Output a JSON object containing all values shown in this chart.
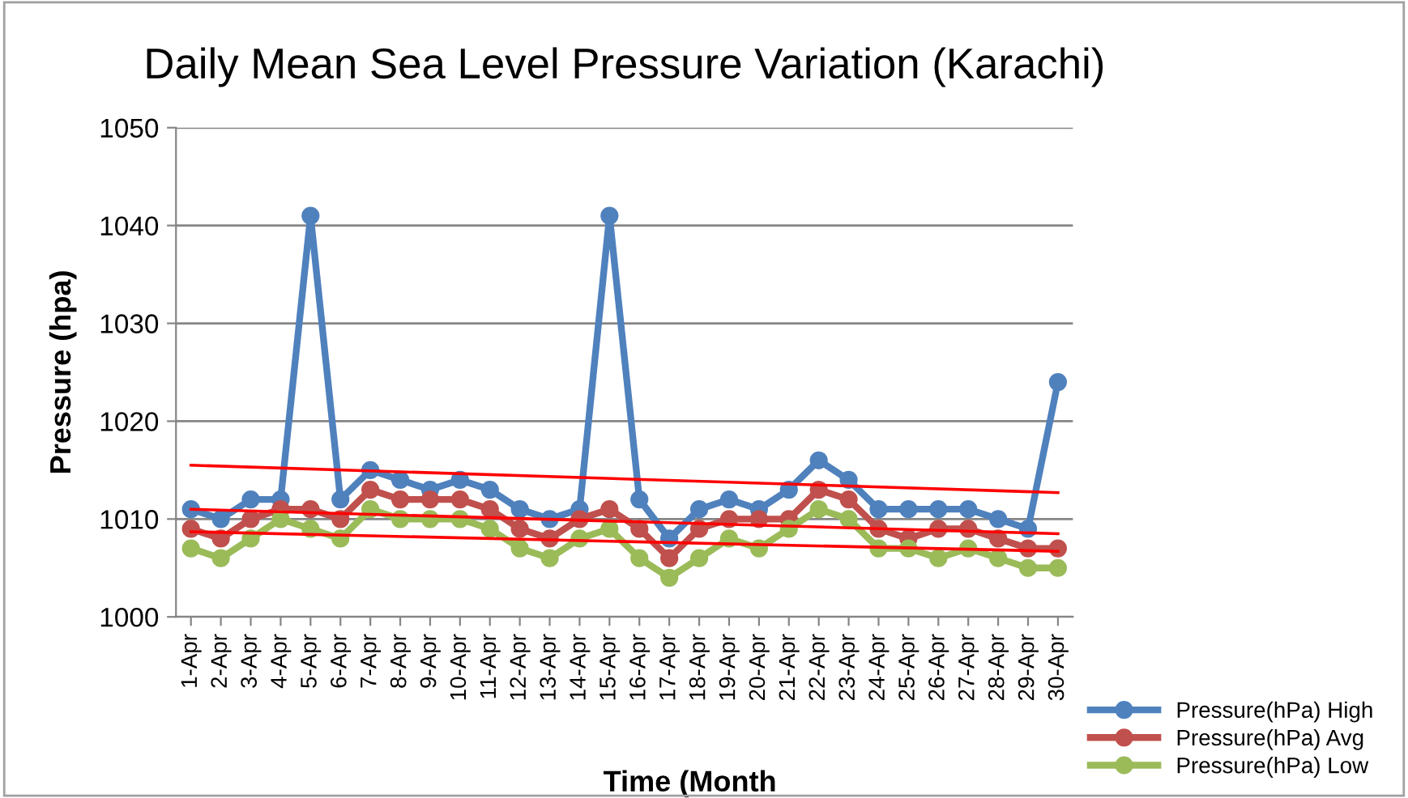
{
  "chart_data": {
    "type": "line",
    "title": "Daily Mean Sea Level Pressure Variation (Karachi)",
    "xlabel": "Time (Month",
    "ylabel": "Pressure (hpa)",
    "categories": [
      "1-Apr",
      "2-Apr",
      "3-Apr",
      "4-Apr",
      "5-Apr",
      "6-Apr",
      "7-Apr",
      "8-Apr",
      "9-Apr",
      "10-Apr",
      "11-Apr",
      "12-Apr",
      "13-Apr",
      "14-Apr",
      "15-Apr",
      "16-Apr",
      "17-Apr",
      "18-Apr",
      "19-Apr",
      "20-Apr",
      "21-Apr",
      "22-Apr",
      "23-Apr",
      "24-Apr",
      "25-Apr",
      "26-Apr",
      "27-Apr",
      "28-Apr",
      "29-Apr",
      "30-Apr"
    ],
    "series": [
      {
        "name": "Pressure(hPa) High",
        "color": "#4f81bd",
        "values": [
          1011,
          1010,
          1012,
          1012,
          1041,
          1012,
          1015,
          1014,
          1013,
          1014,
          1013,
          1011,
          1010,
          1011,
          1041,
          1012,
          1008,
          1011,
          1012,
          1011,
          1013,
          1016,
          1014,
          1011,
          1011,
          1011,
          1011,
          1010,
          1009,
          1024
        ]
      },
      {
        "name": "Pressure(hPa) Avg",
        "color": "#c0504d",
        "values": [
          1009,
          1008,
          1010,
          1011,
          1011,
          1010,
          1013,
          1012,
          1012,
          1012,
          1011,
          1009,
          1008,
          1010,
          1011,
          1009,
          1006,
          1009,
          1010,
          1010,
          1010,
          1013,
          1012,
          1009,
          1008,
          1009,
          1009,
          1008,
          1007,
          1007
        ]
      },
      {
        "name": "Pressure(hPa) Low",
        "color": "#9bbb59",
        "values": [
          1007,
          1006,
          1008,
          1010,
          1009,
          1008,
          1011,
          1010,
          1010,
          1010,
          1009,
          1007,
          1006,
          1008,
          1009,
          1006,
          1004,
          1006,
          1008,
          1007,
          1009,
          1011,
          1010,
          1007,
          1007,
          1006,
          1007,
          1006,
          1005,
          1005
        ]
      },
      {
        "type": "line",
        "marker": "none",
        "color": "#ff0000",
        "x": [
          "1-Apr",
          "30-Apr"
        ],
        "values": [
          1015.5,
          1012.7
        ]
      },
      {
        "type": "line",
        "marker": "none",
        "color": "#ff0000",
        "x": [
          "1-Apr",
          "30-Apr"
        ],
        "values": [
          1011,
          1008.5
        ]
      },
      {
        "type": "line",
        "marker": "none",
        "color": "#ff0000",
        "x": [
          "1-Apr",
          "30-Apr"
        ],
        "values": [
          1008.7,
          1006.7
        ]
      }
    ],
    "ylim": [
      1000,
      1050
    ],
    "yticks": [
      1000,
      1010,
      1020,
      1030,
      1040,
      1050
    ],
    "grid": "y",
    "legend": "bottom right",
    "marker": "circle",
    "line_style": "solid"
  }
}
